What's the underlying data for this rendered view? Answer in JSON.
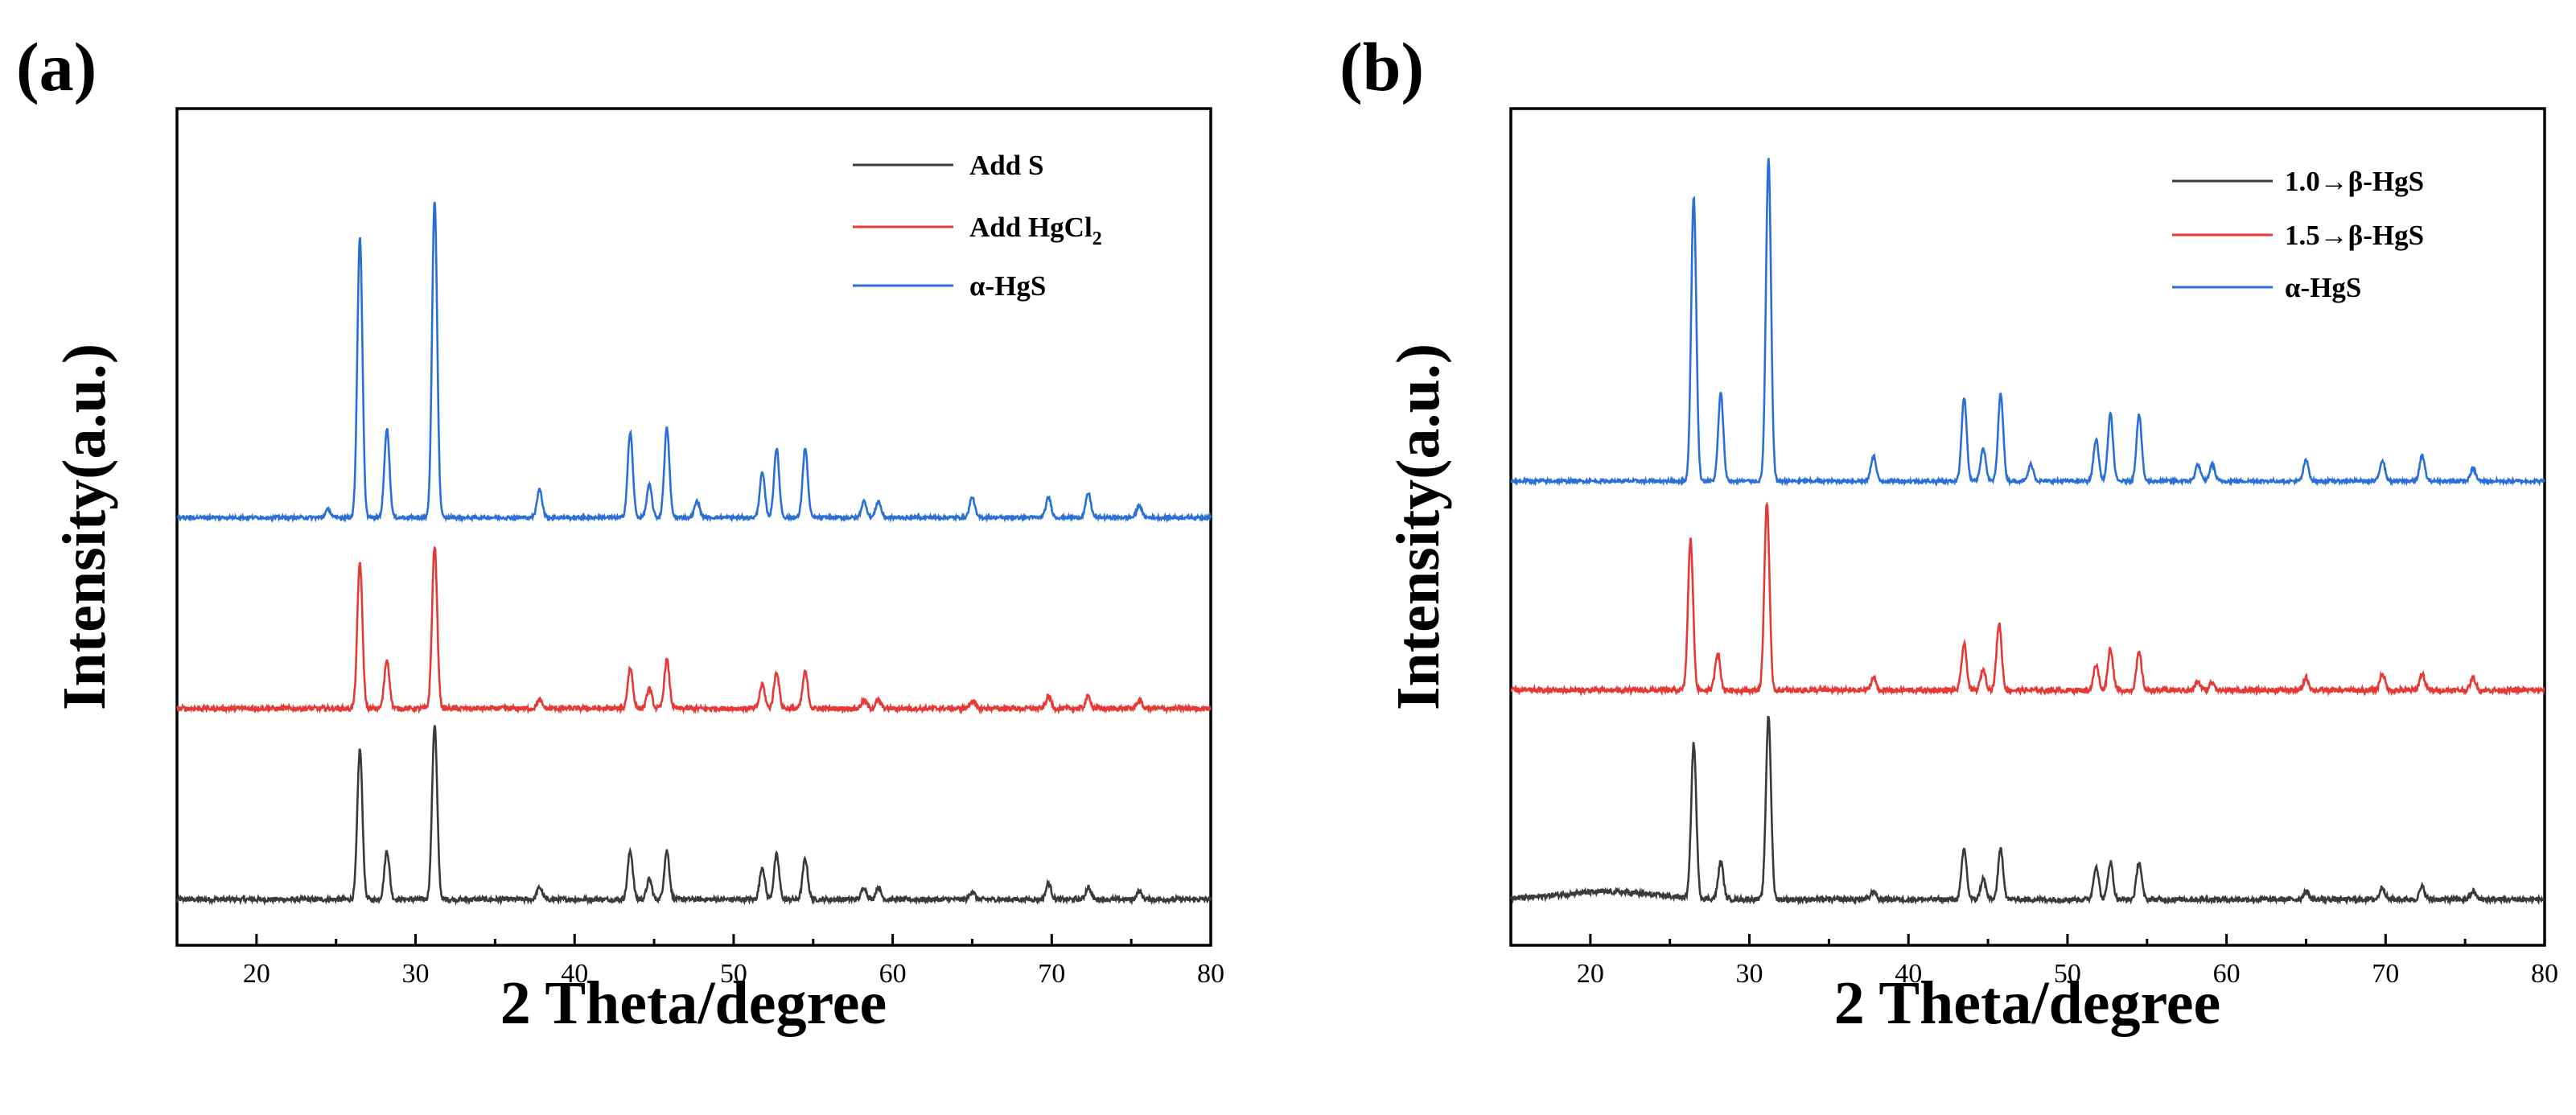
{
  "chart_data": [
    {
      "type": "line",
      "panel_label": "(a)",
      "xlabel": "2 Theta/degree",
      "ylabel": "Intensity(a.u.)",
      "xlim": [
        15,
        80
      ],
      "x_ticks": [
        "20",
        "30",
        "40",
        "50",
        "60",
        "70",
        "80"
      ],
      "y_ticks_shown": false,
      "legend_position": "top-right",
      "series": [
        {
          "name": "Add S",
          "name_main": "Add S",
          "name_sub": "",
          "name_suffix": "",
          "color": "#3a3a3a",
          "offset": 0.0,
          "noise": 0.006,
          "peaks": [
            [
              26.5,
              0.37
            ],
            [
              28.2,
              0.12
            ],
            [
              31.2,
              0.43
            ],
            [
              37.8,
              0.03
            ],
            [
              43.5,
              0.12
            ],
            [
              44.7,
              0.05
            ],
            [
              45.8,
              0.12
            ],
            [
              51.8,
              0.08
            ],
            [
              52.7,
              0.11
            ],
            [
              54.5,
              0.1
            ],
            [
              58.2,
              0.03
            ],
            [
              59.1,
              0.03
            ],
            [
              65.0,
              0.02
            ],
            [
              69.8,
              0.04
            ],
            [
              72.3,
              0.03
            ],
            [
              75.5,
              0.02
            ]
          ]
        },
        {
          "name": "Add HgCl2",
          "name_main": "Add HgCl",
          "name_sub": "2",
          "name_suffix": "",
          "color": "#e53935",
          "offset": 0.47,
          "noise": 0.006,
          "peaks": [
            [
              26.5,
              0.36
            ],
            [
              28.2,
              0.12
            ],
            [
              31.2,
              0.4
            ],
            [
              37.8,
              0.02
            ],
            [
              43.5,
              0.1
            ],
            [
              44.7,
              0.05
            ],
            [
              45.8,
              0.12
            ],
            [
              51.8,
              0.06
            ],
            [
              52.7,
              0.09
            ],
            [
              54.5,
              0.09
            ],
            [
              58.2,
              0.02
            ],
            [
              59.1,
              0.02
            ],
            [
              65.0,
              0.02
            ],
            [
              69.8,
              0.03
            ],
            [
              72.3,
              0.03
            ],
            [
              75.5,
              0.02
            ]
          ]
        },
        {
          "name": "α-HgS",
          "name_main": "α-HgS",
          "name_sub": "",
          "name_suffix": "",
          "color": "#2a6fd6",
          "offset": 0.94,
          "noise": 0.004,
          "peaks": [
            [
              24.5,
              0.02
            ],
            [
              26.5,
              0.69
            ],
            [
              28.2,
              0.22
            ],
            [
              31.2,
              0.78
            ],
            [
              37.8,
              0.07
            ],
            [
              43.5,
              0.21
            ],
            [
              44.7,
              0.08
            ],
            [
              45.8,
              0.22
            ],
            [
              47.7,
              0.04
            ],
            [
              51.8,
              0.11
            ],
            [
              52.7,
              0.17
            ],
            [
              54.5,
              0.17
            ],
            [
              58.2,
              0.04
            ],
            [
              59.1,
              0.04
            ],
            [
              65.0,
              0.05
            ],
            [
              69.8,
              0.05
            ],
            [
              72.3,
              0.06
            ],
            [
              75.5,
              0.03
            ]
          ]
        }
      ]
    },
    {
      "type": "line",
      "panel_label": "(b)",
      "xlabel": "2 Theta/degree",
      "ylabel": "Intensity(a.u.)",
      "xlim": [
        15,
        80
      ],
      "x_ticks": [
        "20",
        "30",
        "40",
        "50",
        "60",
        "70",
        "80"
      ],
      "y_ticks_shown": false,
      "legend_position": "top-right",
      "series": [
        {
          "name": "1.0→β-HgS",
          "name_main": "1.0→β-HgS",
          "name_sub": "",
          "name_suffix": "",
          "color": "#3a3a3a",
          "offset": 0.0,
          "noise": 0.006,
          "peaks": [
            [
              26.5,
              0.37
            ],
            [
              28.2,
              0.09
            ],
            [
              31.2,
              0.44
            ],
            [
              37.8,
              0.02
            ],
            [
              43.5,
              0.12
            ],
            [
              44.7,
              0.05
            ],
            [
              45.8,
              0.12
            ],
            [
              51.8,
              0.08
            ],
            [
              52.7,
              0.09
            ],
            [
              54.5,
              0.09
            ],
            [
              65.0,
              0.02
            ],
            [
              69.8,
              0.03
            ],
            [
              72.3,
              0.03
            ],
            [
              75.5,
              0.02
            ]
          ]
        },
        {
          "name": "1.5→β-HgS",
          "name_main": "1.5→β-HgS",
          "name_sub": "",
          "name_suffix": "",
          "color": "#e53935",
          "offset": 0.5,
          "noise": 0.006,
          "peaks": [
            [
              26.3,
              0.36
            ],
            [
              28.0,
              0.09
            ],
            [
              31.1,
              0.45
            ],
            [
              37.8,
              0.03
            ],
            [
              43.5,
              0.11
            ],
            [
              44.7,
              0.05
            ],
            [
              45.7,
              0.16
            ],
            [
              51.8,
              0.06
            ],
            [
              52.7,
              0.1
            ],
            [
              54.5,
              0.09
            ],
            [
              58.2,
              0.02
            ],
            [
              59.1,
              0.02
            ],
            [
              65.0,
              0.03
            ],
            [
              69.8,
              0.04
            ],
            [
              72.3,
              0.04
            ],
            [
              75.5,
              0.03
            ]
          ]
        },
        {
          "name": "α-HgS",
          "name_main": "α-HgS",
          "name_sub": "",
          "name_suffix": "",
          "color": "#2a6fd6",
          "offset": 1.0,
          "noise": 0.004,
          "peaks": [
            [
              26.5,
              0.68
            ],
            [
              28.2,
              0.21
            ],
            [
              31.2,
              0.77
            ],
            [
              37.8,
              0.06
            ],
            [
              43.5,
              0.2
            ],
            [
              44.7,
              0.08
            ],
            [
              45.8,
              0.21
            ],
            [
              47.7,
              0.04
            ],
            [
              51.8,
              0.1
            ],
            [
              52.7,
              0.16
            ],
            [
              54.5,
              0.16
            ],
            [
              58.2,
              0.04
            ],
            [
              59.1,
              0.04
            ],
            [
              65.0,
              0.05
            ],
            [
              69.8,
              0.05
            ],
            [
              72.3,
              0.06
            ],
            [
              75.5,
              0.03
            ]
          ]
        }
      ]
    }
  ]
}
